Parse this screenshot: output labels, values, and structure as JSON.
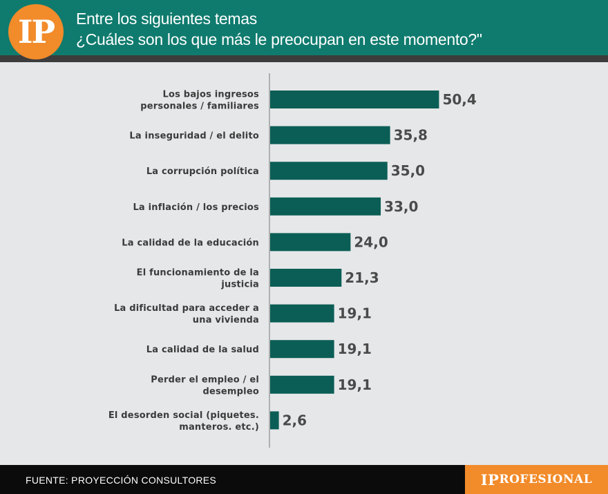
{
  "header": {
    "logo_text": "IP",
    "title_line1": "Entre los siguientes temas",
    "title_line2": "¿Cuáles son los que más le preocupan en este momento?\""
  },
  "footer": {
    "source": "FUENTE: PROYECCIÓN CONSULTORES",
    "brand_first": "IP",
    "brand_rest": "ROFESIONAL"
  },
  "colors": {
    "header_bg": "#0f7b6e",
    "bar_color": "#0b5e55",
    "accent": "#f28b2a",
    "background": "#e6e7e9"
  },
  "chart_data": {
    "type": "bar",
    "orientation": "horizontal",
    "title": "Entre los siguientes temas ¿Cuáles son los que más le preocupan en este momento?\"",
    "categories": [
      [
        "Los bajos ingresos",
        "personales / familiares"
      ],
      [
        "La inseguridad / el delito"
      ],
      [
        "La corrupción política"
      ],
      [
        "La inflación / los precios"
      ],
      [
        "La calidad de la educación"
      ],
      [
        "El funcionamiento de la",
        "justicia"
      ],
      [
        "La dificultad para acceder a",
        "una vivienda"
      ],
      [
        "La calidad de la salud"
      ],
      [
        "Perder el empleo / el",
        "desempleo"
      ],
      [
        "El desorden social (piquetes.",
        "manteros. etc.)"
      ]
    ],
    "values": [
      50.4,
      35.8,
      35.0,
      33.0,
      24.0,
      21.3,
      19.1,
      19.1,
      19.1,
      2.6
    ],
    "value_labels": [
      "50,4",
      "35,8",
      "35,0",
      "33,0",
      "24,0",
      "21,3",
      "19,1",
      "19,1",
      "19,1",
      "2,6"
    ],
    "xlim": [
      0,
      100
    ],
    "grid": false,
    "legend": "none"
  }
}
